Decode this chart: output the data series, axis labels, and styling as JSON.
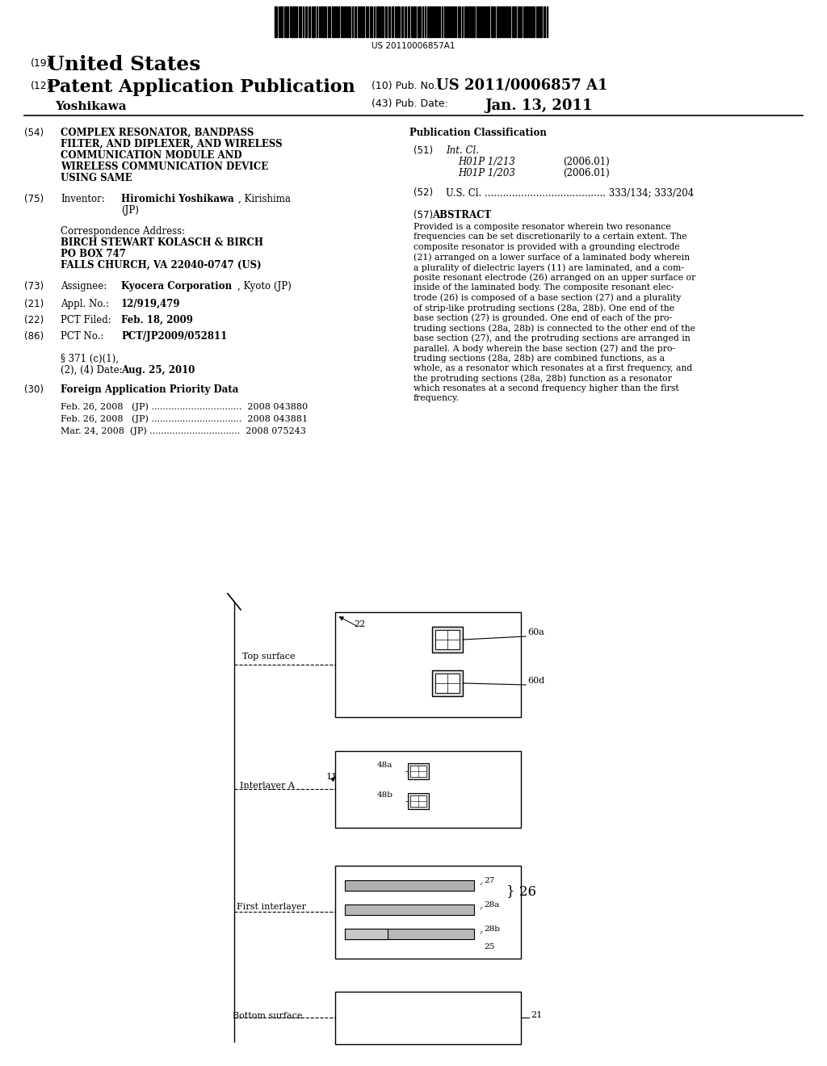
{
  "background_color": "#ffffff",
  "barcode_text": "US 20110006857A1",
  "header": {
    "country_num": "(19)",
    "country": "United States",
    "type_num": "(12)",
    "type": "Patent Application Publication",
    "pub_num_label": "(10) Pub. No.:",
    "pub_num": "US 2011/0006857 A1",
    "inventor": "Yoshikawa",
    "date_label": "(43) Pub. Date:",
    "date": "Jan. 13, 2011"
  },
  "abstract_lines": [
    "Provided is a composite resonator wherein two resonance",
    "frequencies can be set discretionarily to a certain extent. The",
    "composite resonator is provided with a grounding electrode",
    "(21) arranged on a lower surface of a laminated body wherein",
    "a plurality of dielectric layers (11) are laminated, and a com-",
    "posite resonant electrode (26) arranged on an upper surface or",
    "inside of the laminated body. The composite resonant elec-",
    "trode (26) is composed of a base section (27) and a plurality",
    "of strip-like protruding sections (28a, 28b). One end of the",
    "base section (27) is grounded. One end of each of the pro-",
    "truding sections (28a, 28b) is connected to the other end of the",
    "base section (27), and the protruding sections are arranged in",
    "parallel. A body wherein the base section (27) and the pro-",
    "truding sections (28a, 28b) are combined functions, as a",
    "whole, as a resonator which resonates at a first frequency, and",
    "the protruding sections (28a, 28b) function as a resonator",
    "which resonates at a second frequency higher than the first",
    "frequency."
  ]
}
